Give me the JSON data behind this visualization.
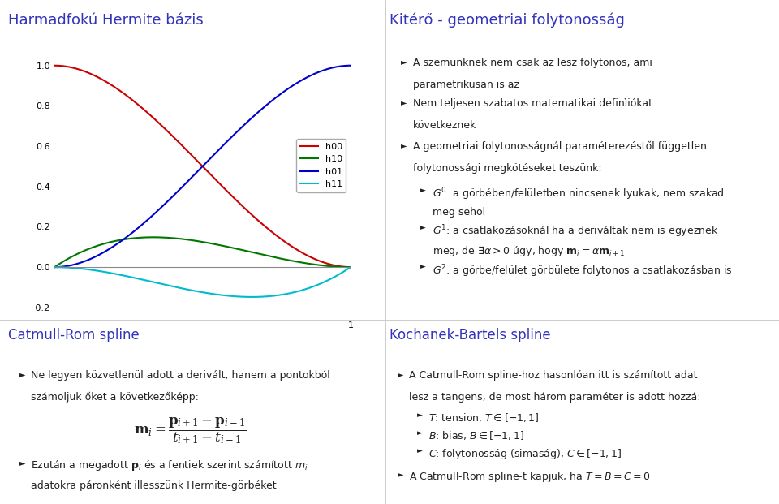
{
  "title_left": "Harmadfokú Hermite bázis",
  "title_right": "Kitérő - geometriai folytonosság",
  "title_bottom_left": "Catmull-Rom spline",
  "title_bottom_right": "Kochanek-Bartels spline",
  "title_color": "#3333bb",
  "bg_color": "#ffffff",
  "line_colors": {
    "h00": "#cc0000",
    "h10": "#007700",
    "h01": "#0000cc",
    "h11": "#00bbcc"
  },
  "right_bullets": [
    "A szemünknek nem csak az lesz folytonos, ami\nparametrikusan is az",
    "Nem teljesen szabatos matematikai definìiókat\nkövetkeznek",
    "A geometriai folytonosságnál paraméterezéstől független\nfolytonossági megkötéseket teszünk:"
  ],
  "sub_bullets": [
    "$G^0$: a görbében/felületben nincsenek lyukak, nem szakad\nmeg sehol",
    "$G^1$: a csatlakozásoknál ha a deriváltak nem is egyeznek\nmeg, de $\\exists\\alpha > 0$ úgy, hogy $\\mathbf{m}_i = \\alpha\\mathbf{m}_{i+1}$",
    "$G^2$: a görbe/felület görbülete folytonos a csatlakozásban is"
  ],
  "bottom_left_bullet1": "Ne legyen közvetlenül adott a derivált, hanem a pontokból\nszámoljuk őket a következőképp:",
  "formula": "$\\mathbf{m}_i = \\dfrac{\\mathbf{p}_{i+1} - \\mathbf{p}_{i-1}}{t_{i+1} - t_{i-1}}$",
  "bottom_left_bullet2_part1": "Ezután a megadott $\\mathbf{p}_i$ és a fentiek szerint számított $m_i$",
  "bottom_left_bullet2_part2": "adatokra páronként illesszünk Hermite-görbéket",
  "bottom_right_bullet1_part1": "A Catmull-Rom spline-hoz hasonlóan itt is számított adat",
  "bottom_right_bullet1_part2": "lesz a tangens, de most három paraméter is adott hozzá:",
  "bottom_right_sub_bullets": [
    "$T$: tension, $T \\in [-1, 1]$",
    "$B$: bias, $B \\in [-1, 1]$",
    "$C$: folytonosság (simaság), $C \\in [-1, 1]$"
  ],
  "bottom_right_bullet2": "A Catmull-Rom spline-t kapjuk, ha $T = B = C = 0$"
}
